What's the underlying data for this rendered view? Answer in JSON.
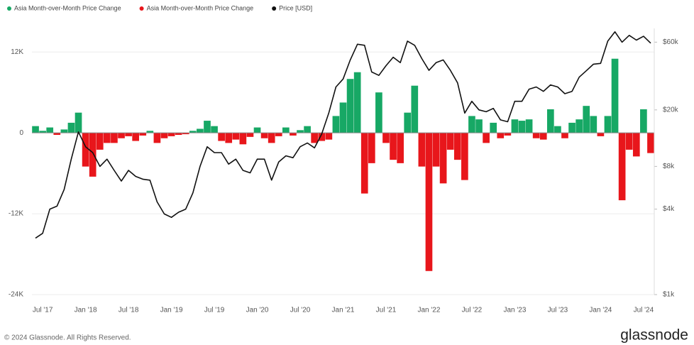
{
  "chart_data": {
    "type": "bar",
    "categories": [
      null,
      "Jul '17",
      null,
      null,
      null,
      null,
      null,
      "Jan '18",
      null,
      null,
      null,
      null,
      null,
      "Jul '18",
      null,
      null,
      null,
      null,
      null,
      "Jan '19",
      null,
      null,
      null,
      null,
      null,
      "Jul '19",
      null,
      null,
      null,
      null,
      null,
      "Jan '20",
      null,
      null,
      null,
      null,
      null,
      "Jul '20",
      null,
      null,
      null,
      null,
      null,
      "Jan '21",
      null,
      null,
      null,
      null,
      null,
      "Jul '21",
      null,
      null,
      null,
      null,
      null,
      "Jan '22",
      null,
      null,
      null,
      null,
      null,
      "Jul '22",
      null,
      null,
      null,
      null,
      null,
      "Jan '23",
      null,
      null,
      null,
      null,
      null,
      "Jul '23",
      null,
      null,
      null,
      null,
      null,
      "Jan '24",
      null,
      null,
      null,
      null,
      null,
      "Jul '24",
      null
    ],
    "series": [
      {
        "name": "Asia Month-over-Month Price Change",
        "color": "#17a865",
        "values": [
          1000,
          300,
          800,
          null,
          500,
          1500,
          3000,
          null,
          null,
          null,
          null,
          null,
          null,
          null,
          null,
          null,
          300,
          null,
          null,
          null,
          null,
          null,
          300,
          600,
          1800,
          1000,
          null,
          null,
          null,
          null,
          null,
          800,
          null,
          null,
          null,
          800,
          null,
          400,
          1000,
          null,
          null,
          null,
          2500,
          4500,
          8000,
          9000,
          null,
          null,
          6000,
          null,
          null,
          null,
          3000,
          7000,
          null,
          null,
          null,
          null,
          null,
          null,
          null,
          2500,
          2000,
          null,
          1500,
          null,
          null,
          2000,
          1800,
          2000,
          null,
          null,
          3500,
          1000,
          null,
          1500,
          2000,
          4000,
          2500,
          null,
          2500,
          11000,
          null,
          null,
          null,
          3500,
          null
        ]
      },
      {
        "name": "Asia Month-over-Month Price Change",
        "color": "#e8161b",
        "values": [
          null,
          null,
          null,
          -300,
          null,
          null,
          null,
          -5000,
          -6500,
          -2500,
          -1500,
          -1500,
          -800,
          -500,
          -1200,
          -400,
          null,
          -1500,
          -800,
          -500,
          -300,
          -200,
          null,
          null,
          null,
          null,
          -1200,
          -1500,
          -1000,
          -1700,
          -600,
          null,
          -800,
          -1500,
          -500,
          null,
          -400,
          null,
          null,
          -1500,
          -1200,
          -1000,
          null,
          null,
          null,
          null,
          -9000,
          -4500,
          null,
          -1500,
          -4000,
          -4500,
          null,
          null,
          -5000,
          -20500,
          -5000,
          -7500,
          -2500,
          -4000,
          -7000,
          null,
          null,
          -1500,
          null,
          -800,
          -400,
          null,
          null,
          null,
          -800,
          -1000,
          null,
          null,
          -800,
          null,
          null,
          null,
          null,
          -500,
          null,
          null,
          -10000,
          -2500,
          -3500,
          null,
          -3000
        ]
      },
      {
        "name": "Price [USD]",
        "color": "#111111",
        "axis": "y2",
        "type": "line",
        "values": [
          2500,
          2700,
          4000,
          4200,
          5500,
          9000,
          14000,
          11000,
          10000,
          8000,
          9000,
          7500,
          6300,
          7500,
          6800,
          6500,
          6400,
          4500,
          3700,
          3500,
          3800,
          4000,
          5200,
          8000,
          11000,
          10000,
          10000,
          8300,
          9000,
          7500,
          7200,
          9000,
          9000,
          6400,
          8600,
          9500,
          9200,
          11000,
          11700,
          10800,
          13500,
          19000,
          29000,
          33000,
          45000,
          58000,
          57000,
          37000,
          35000,
          41000,
          47000,
          43000,
          61000,
          57000,
          46000,
          38000,
          43000,
          45000,
          38000,
          31000,
          19000,
          23000,
          20000,
          19400,
          20500,
          17000,
          16500,
          23000,
          23000,
          28000,
          29000,
          27000,
          30000,
          29000,
          26000,
          27000,
          34000,
          37700,
          42000,
          42500,
          61000,
          71000,
          60000,
          67000,
          62000,
          66000,
          59000
        ]
      }
    ],
    "ylim": [
      -24000,
      15500
    ],
    "yticks": [
      {
        "value": 12000,
        "label": "12K"
      },
      0,
      {
        "value": -12000,
        "label": "-12K"
      },
      {
        "value": -24000,
        "label": "-24K"
      }
    ],
    "y2lim": [
      1000,
      75000
    ],
    "y2ticks": [
      {
        "value": 60000,
        "label": "$60k"
      },
      {
        "value": 20000,
        "label": "$20k"
      },
      {
        "value": 8000,
        "label": "$8k"
      },
      {
        "value": 4000,
        "label": "$4k"
      },
      {
        "value": 1000,
        "label": "$1k"
      }
    ],
    "y2log": true,
    "grid": true,
    "legend": "top-left"
  },
  "footer": {
    "copyright": "© 2024 Glassnode. All Rights Reserved.",
    "brand": "glassnode"
  }
}
